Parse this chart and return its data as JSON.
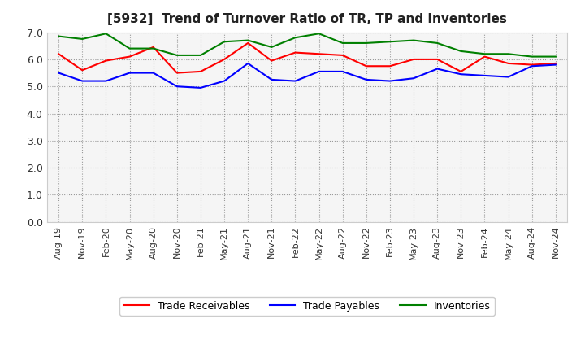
{
  "title": "[5932]  Trend of Turnover Ratio of TR, TP and Inventories",
  "x_labels": [
    "Aug-19",
    "Nov-19",
    "Feb-20",
    "May-20",
    "Aug-20",
    "Nov-20",
    "Feb-21",
    "May-21",
    "Aug-21",
    "Nov-21",
    "Feb-22",
    "May-22",
    "Aug-22",
    "Nov-22",
    "Feb-23",
    "May-23",
    "Aug-23",
    "Nov-23",
    "Feb-24",
    "May-24",
    "Aug-24",
    "Nov-24"
  ],
  "trade_receivables": [
    6.2,
    5.6,
    5.95,
    6.1,
    6.45,
    5.5,
    5.55,
    6.0,
    6.6,
    5.95,
    6.25,
    6.2,
    6.15,
    5.75,
    5.75,
    6.0,
    6.0,
    5.55,
    6.1,
    5.85,
    5.8,
    5.85
  ],
  "trade_payables": [
    5.5,
    5.2,
    5.2,
    5.5,
    5.5,
    5.0,
    4.95,
    5.2,
    5.85,
    5.25,
    5.2,
    5.55,
    5.55,
    5.25,
    5.2,
    5.3,
    5.65,
    5.45,
    5.4,
    5.35,
    5.75,
    5.8
  ],
  "inventories": [
    6.85,
    6.75,
    6.95,
    6.4,
    6.4,
    6.15,
    6.15,
    6.65,
    6.7,
    6.45,
    6.8,
    6.95,
    6.6,
    6.6,
    6.65,
    6.7,
    6.6,
    6.3,
    6.2,
    6.2,
    6.1,
    6.1
  ],
  "tr_color": "#ff0000",
  "tp_color": "#0000ff",
  "inv_color": "#008000",
  "ylim": [
    0.0,
    7.0
  ],
  "yticks": [
    0.0,
    1.0,
    2.0,
    3.0,
    4.0,
    5.0,
    6.0,
    7.0
  ],
  "background_color": "#ffffff",
  "plot_bg_color": "#f5f5f5",
  "grid_color": "#999999",
  "legend_tr": "Trade Receivables",
  "legend_tp": "Trade Payables",
  "legend_inv": "Inventories",
  "title_fontsize": 11,
  "tick_fontsize": 8,
  "ytick_fontsize": 9
}
